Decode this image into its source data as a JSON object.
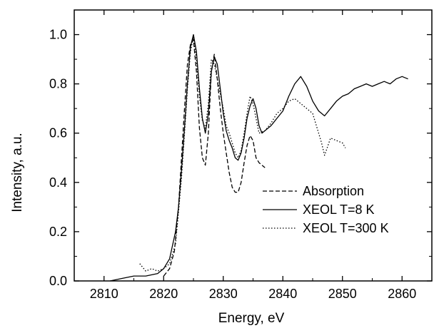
{
  "chart_data": {
    "type": "line",
    "title": "",
    "xlabel": "Energy, eV",
    "ylabel": "Intensity, a.u.",
    "xlim": [
      2805,
      2865
    ],
    "ylim": [
      0,
      1.1
    ],
    "xticks": [
      2810,
      2820,
      2830,
      2840,
      2850,
      2860
    ],
    "xtick_labels": [
      "2810",
      "2820",
      "2830",
      "2840",
      "2850",
      "2860"
    ],
    "yticks": [
      0.0,
      0.2,
      0.4,
      0.6,
      0.8,
      1.0
    ],
    "ytick_labels": [
      "0.0",
      "0.2",
      "0.4",
      "0.6",
      "0.8",
      "1.0"
    ],
    "grid": false,
    "legend_position": "center-right",
    "series": [
      {
        "name": "Absorption",
        "style": "dashed",
        "color": "#000000",
        "x": [
          2820.0,
          2821.0,
          2821.8,
          2822.5,
          2823.0,
          2823.5,
          2824.0,
          2824.5,
          2825.0,
          2825.5,
          2826.0,
          2826.5,
          2827.0,
          2827.5,
          2828.0,
          2828.5,
          2829.0,
          2829.5,
          2830.0,
          2830.5,
          2831.0,
          2831.5,
          2832.0,
          2832.5,
          2833.0,
          2833.5,
          2834.0,
          2834.5,
          2835.0,
          2835.5,
          2836.0,
          2836.5,
          2837.0
        ],
        "y": [
          0.02,
          0.05,
          0.12,
          0.3,
          0.5,
          0.7,
          0.88,
          0.96,
          0.98,
          0.85,
          0.62,
          0.5,
          0.47,
          0.6,
          0.85,
          0.92,
          0.82,
          0.7,
          0.6,
          0.52,
          0.44,
          0.38,
          0.36,
          0.36,
          0.4,
          0.48,
          0.55,
          0.59,
          0.57,
          0.5,
          0.48,
          0.47,
          0.46
        ]
      },
      {
        "name": "XEOL T=8 K",
        "style": "solid",
        "color": "#000000",
        "x": [
          2811.0,
          2813.0,
          2815.0,
          2817.0,
          2819.0,
          2820.0,
          2821.0,
          2822.0,
          2822.5,
          2823.0,
          2823.5,
          2824.0,
          2824.5,
          2825.0,
          2825.5,
          2826.0,
          2826.5,
          2827.0,
          2827.5,
          2828.0,
          2828.5,
          2829.0,
          2829.5,
          2830.0,
          2830.5,
          2831.0,
          2831.5,
          2832.0,
          2832.5,
          2833.0,
          2833.5,
          2834.0,
          2834.5,
          2835.0,
          2835.5,
          2836.0,
          2836.5,
          2837.0,
          2838.0,
          2839.0,
          2840.0,
          2841.0,
          2842.0,
          2843.0,
          2844.0,
          2845.0,
          2846.0,
          2847.0,
          2848.0,
          2849.0,
          2850.0,
          2851.0,
          2852.0,
          2853.0,
          2854.0,
          2855.0,
          2856.0,
          2857.0,
          2858.0,
          2859.0,
          2860.0,
          2861.0
        ],
        "y": [
          0.0,
          0.01,
          0.02,
          0.02,
          0.03,
          0.05,
          0.09,
          0.2,
          0.3,
          0.45,
          0.62,
          0.8,
          0.95,
          1.0,
          0.93,
          0.78,
          0.66,
          0.6,
          0.68,
          0.85,
          0.91,
          0.88,
          0.78,
          0.68,
          0.61,
          0.57,
          0.54,
          0.5,
          0.49,
          0.52,
          0.58,
          0.66,
          0.71,
          0.74,
          0.7,
          0.63,
          0.6,
          0.61,
          0.63,
          0.66,
          0.69,
          0.75,
          0.8,
          0.83,
          0.79,
          0.73,
          0.69,
          0.67,
          0.7,
          0.73,
          0.75,
          0.76,
          0.78,
          0.79,
          0.8,
          0.79,
          0.8,
          0.81,
          0.8,
          0.82,
          0.83,
          0.82
        ]
      },
      {
        "name": "XEOL T=300 K",
        "style": "dotted",
        "color": "#000000",
        "x": [
          2816.0,
          2817.0,
          2818.0,
          2819.0,
          2820.0,
          2821.0,
          2822.0,
          2822.5,
          2823.0,
          2823.5,
          2824.0,
          2824.5,
          2825.0,
          2825.5,
          2826.0,
          2826.5,
          2827.0,
          2827.5,
          2828.0,
          2828.5,
          2829.0,
          2829.5,
          2830.0,
          2830.5,
          2831.0,
          2831.5,
          2832.0,
          2832.5,
          2833.0,
          2833.5,
          2834.0,
          2834.5,
          2835.0,
          2835.5,
          2836.0,
          2837.0,
          2838.0,
          2839.0,
          2840.0,
          2841.0,
          2842.0,
          2843.0,
          2844.0,
          2845.0,
          2846.0,
          2846.5,
          2847.0,
          2848.0,
          2849.0,
          2850.0,
          2850.5
        ],
        "y": [
          0.07,
          0.04,
          0.05,
          0.04,
          0.05,
          0.07,
          0.15,
          0.28,
          0.42,
          0.6,
          0.78,
          0.93,
          0.99,
          0.9,
          0.75,
          0.65,
          0.62,
          0.72,
          0.9,
          0.88,
          0.82,
          0.76,
          0.7,
          0.63,
          0.6,
          0.56,
          0.52,
          0.5,
          0.53,
          0.6,
          0.68,
          0.75,
          0.72,
          0.66,
          0.6,
          0.61,
          0.64,
          0.68,
          0.7,
          0.73,
          0.74,
          0.72,
          0.7,
          0.68,
          0.6,
          0.56,
          0.51,
          0.58,
          0.57,
          0.56,
          0.54
        ]
      }
    ]
  }
}
